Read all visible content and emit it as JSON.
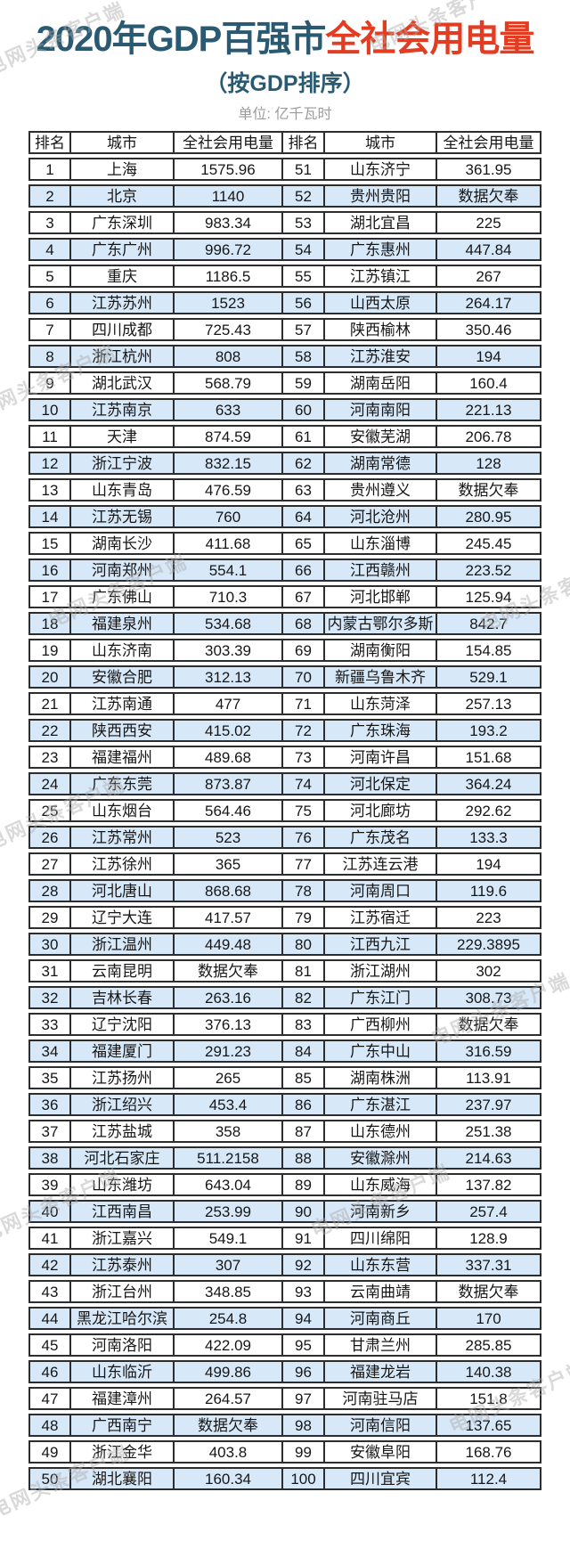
{
  "header": {
    "title_blue": "2020年GDP百强市",
    "title_red": "全社会用电量",
    "subtitle": "（按GDP排序）",
    "unit": "单位: 亿千瓦时"
  },
  "watermark": {
    "text": "电网头条客户端"
  },
  "colors": {
    "title_blue": "#2a5a71",
    "title_red": "#e23c22",
    "row_alt_blue": "#d7e8f8",
    "border": "#2d2d2d",
    "unit_gray": "#9b9b9b"
  },
  "chart_data": {
    "type": "table",
    "title": "2020年GDP百强市全社会用电量",
    "subtitle": "（按GDP排序）",
    "unit": "亿千瓦时",
    "missing_data_label": "数据欠奉",
    "columns": [
      "排名",
      "城市",
      "全社会用电量",
      "排名",
      "城市",
      "全社会用电量"
    ],
    "rows_left": [
      [
        "1",
        "上海",
        "1575.96"
      ],
      [
        "2",
        "北京",
        "1140"
      ],
      [
        "3",
        "广东深圳",
        "983.34"
      ],
      [
        "4",
        "广东广州",
        "996.72"
      ],
      [
        "5",
        "重庆",
        "1186.5"
      ],
      [
        "6",
        "江苏苏州",
        "1523"
      ],
      [
        "7",
        "四川成都",
        "725.43"
      ],
      [
        "8",
        "浙江杭州",
        "808"
      ],
      [
        "9",
        "湖北武汉",
        "568.79"
      ],
      [
        "10",
        "江苏南京",
        "633"
      ],
      [
        "11",
        "天津",
        "874.59"
      ],
      [
        "12",
        "浙江宁波",
        "832.15"
      ],
      [
        "13",
        "山东青岛",
        "476.59"
      ],
      [
        "14",
        "江苏无锡",
        "760"
      ],
      [
        "15",
        "湖南长沙",
        "411.68"
      ],
      [
        "16",
        "河南郑州",
        "554.1"
      ],
      [
        "17",
        "广东佛山",
        "710.3"
      ],
      [
        "18",
        "福建泉州",
        "534.68"
      ],
      [
        "19",
        "山东济南",
        "303.39"
      ],
      [
        "20",
        "安徽合肥",
        "312.13"
      ],
      [
        "21",
        "江苏南通",
        "477"
      ],
      [
        "22",
        "陕西西安",
        "415.02"
      ],
      [
        "23",
        "福建福州",
        "489.68"
      ],
      [
        "24",
        "广东东莞",
        "873.87"
      ],
      [
        "25",
        "山东烟台",
        "564.46"
      ],
      [
        "26",
        "江苏常州",
        "523"
      ],
      [
        "27",
        "江苏徐州",
        "365"
      ],
      [
        "28",
        "河北唐山",
        "868.68"
      ],
      [
        "29",
        "辽宁大连",
        "417.57"
      ],
      [
        "30",
        "浙江温州",
        "449.48"
      ],
      [
        "31",
        "云南昆明",
        "数据欠奉"
      ],
      [
        "32",
        "吉林长春",
        "263.16"
      ],
      [
        "33",
        "辽宁沈阳",
        "376.13"
      ],
      [
        "34",
        "福建厦门",
        "291.23"
      ],
      [
        "35",
        "江苏扬州",
        "265"
      ],
      [
        "36",
        "浙江绍兴",
        "453.4"
      ],
      [
        "37",
        "江苏盐城",
        "358"
      ],
      [
        "38",
        "河北石家庄",
        "511.2158"
      ],
      [
        "39",
        "山东潍坊",
        "643.04"
      ],
      [
        "40",
        "江西南昌",
        "253.99"
      ],
      [
        "41",
        "浙江嘉兴",
        "549.1"
      ],
      [
        "42",
        "江苏泰州",
        "307"
      ],
      [
        "43",
        "浙江台州",
        "348.85"
      ],
      [
        "44",
        "黑龙江哈尔滨",
        "254.8"
      ],
      [
        "45",
        "河南洛阳",
        "422.09"
      ],
      [
        "46",
        "山东临沂",
        "499.86"
      ],
      [
        "47",
        "福建漳州",
        "264.57"
      ],
      [
        "48",
        "广西南宁",
        "数据欠奉"
      ],
      [
        "49",
        "浙江金华",
        "403.8"
      ],
      [
        "50",
        "湖北襄阳",
        "160.34"
      ]
    ],
    "rows_right": [
      [
        "51",
        "山东济宁",
        "361.95"
      ],
      [
        "52",
        "贵州贵阳",
        "数据欠奉"
      ],
      [
        "53",
        "湖北宜昌",
        "225"
      ],
      [
        "54",
        "广东惠州",
        "447.84"
      ],
      [
        "55",
        "江苏镇江",
        "267"
      ],
      [
        "56",
        "山西太原",
        "264.17"
      ],
      [
        "57",
        "陕西榆林",
        "350.46"
      ],
      [
        "58",
        "江苏淮安",
        "194"
      ],
      [
        "59",
        "湖南岳阳",
        "160.4"
      ],
      [
        "60",
        "河南南阳",
        "221.13"
      ],
      [
        "61",
        "安徽芜湖",
        "206.78"
      ],
      [
        "62",
        "湖南常德",
        "128"
      ],
      [
        "63",
        "贵州遵义",
        "数据欠奉"
      ],
      [
        "64",
        "河北沧州",
        "280.95"
      ],
      [
        "65",
        "山东淄博",
        "245.45"
      ],
      [
        "66",
        "江西赣州",
        "223.52"
      ],
      [
        "67",
        "河北邯郸",
        "125.94"
      ],
      [
        "68",
        "内蒙古鄂尔多斯",
        "842.7"
      ],
      [
        "69",
        "湖南衡阳",
        "154.85"
      ],
      [
        "70",
        "新疆乌鲁木齐",
        "529.1"
      ],
      [
        "71",
        "山东菏泽",
        "257.13"
      ],
      [
        "72",
        "广东珠海",
        "193.2"
      ],
      [
        "73",
        "河南许昌",
        "151.68"
      ],
      [
        "74",
        "河北保定",
        "364.24"
      ],
      [
        "75",
        "河北廊坊",
        "292.62"
      ],
      [
        "76",
        "广东茂名",
        "133.3"
      ],
      [
        "77",
        "江苏连云港",
        "194"
      ],
      [
        "78",
        "河南周口",
        "119.6"
      ],
      [
        "79",
        "江苏宿迁",
        "223"
      ],
      [
        "80",
        "江西九江",
        "229.3895"
      ],
      [
        "81",
        "浙江湖州",
        "302"
      ],
      [
        "82",
        "广东江门",
        "308.73"
      ],
      [
        "83",
        "广西柳州",
        "数据欠奉"
      ],
      [
        "84",
        "广东中山",
        "316.59"
      ],
      [
        "85",
        "湖南株洲",
        "113.91"
      ],
      [
        "86",
        "广东湛江",
        "237.97"
      ],
      [
        "87",
        "山东德州",
        "251.38"
      ],
      [
        "88",
        "安徽滁州",
        "214.63"
      ],
      [
        "89",
        "山东威海",
        "137.82"
      ],
      [
        "90",
        "河南新乡",
        "257.4"
      ],
      [
        "91",
        "四川绵阳",
        "128.9"
      ],
      [
        "92",
        "山东东营",
        "337.31"
      ],
      [
        "93",
        "云南曲靖",
        "数据欠奉"
      ],
      [
        "94",
        "河南商丘",
        "170"
      ],
      [
        "95",
        "甘肃兰州",
        "285.85"
      ],
      [
        "96",
        "福建龙岩",
        "140.38"
      ],
      [
        "97",
        "河南驻马店",
        "151.8"
      ],
      [
        "98",
        "河南信阳",
        "137.65"
      ],
      [
        "99",
        "安徽阜阳",
        "168.76"
      ],
      [
        "100",
        "四川宜宾",
        "112.4"
      ]
    ]
  }
}
